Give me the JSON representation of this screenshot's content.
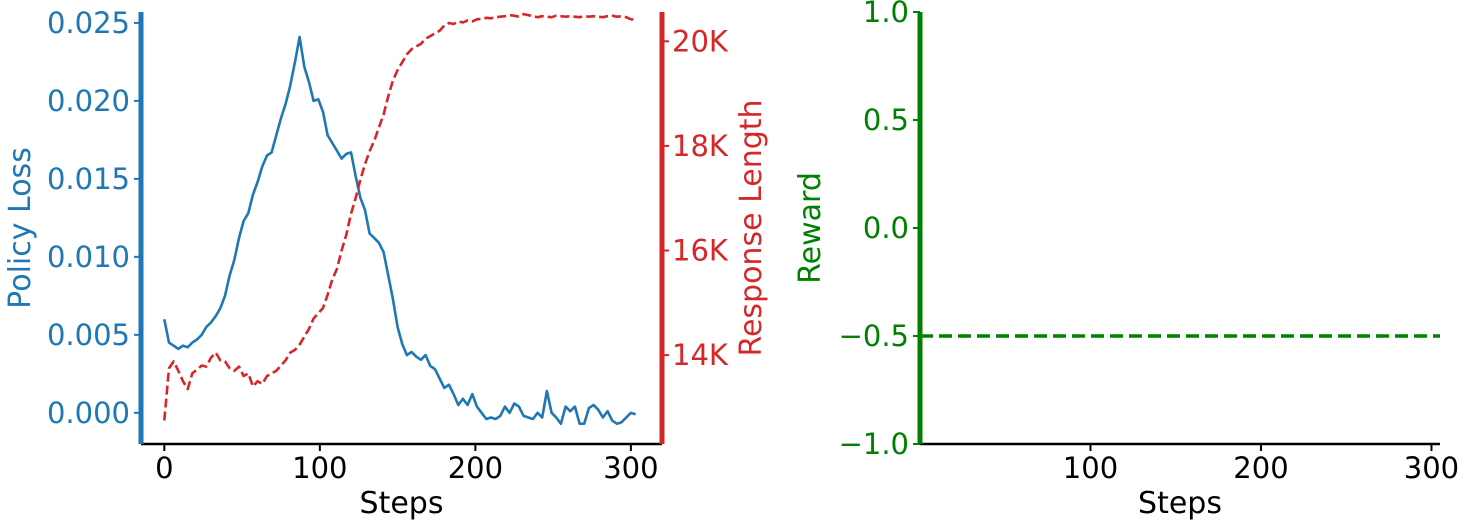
{
  "chart_data": [
    {
      "type": "line",
      "xlabel": "Steps",
      "xlim": [
        -15,
        320
      ],
      "xticks": [
        0,
        100,
        200,
        300
      ],
      "xtick_labels": [
        "0",
        "100",
        "200",
        "300"
      ],
      "left_axis": {
        "label": "Policy Loss",
        "color": "#1f77b4",
        "ylim": [
          -0.002,
          0.0257
        ],
        "ticks": [
          0.0,
          0.005,
          0.01,
          0.015,
          0.02,
          0.025
        ],
        "tick_labels": [
          "0.000",
          "0.005",
          "0.010",
          "0.015",
          "0.020",
          "0.025"
        ]
      },
      "right_axis": {
        "label": "Response Length",
        "color": "#d62728",
        "ylim": [
          12300,
          20560
        ],
        "ticks": [
          14000,
          16000,
          18000,
          20000
        ],
        "tick_labels": [
          "14K",
          "16K",
          "18K",
          "20K"
        ]
      },
      "grid": false,
      "series": [
        {
          "axis": "left",
          "style": "solid",
          "color": "#1f77b4",
          "x": [
            0,
            3,
            6,
            9,
            12,
            15,
            18,
            21,
            24,
            27,
            30,
            33,
            36,
            39,
            42,
            45,
            48,
            51,
            54,
            57,
            60,
            63,
            66,
            69,
            72,
            75,
            78,
            81,
            84,
            87,
            90,
            93,
            96,
            99,
            102,
            105,
            108,
            111,
            114,
            117,
            120,
            123,
            126,
            129,
            132,
            135,
            138,
            141,
            144,
            147,
            150,
            153,
            156,
            159,
            162,
            165,
            168,
            171,
            174,
            177,
            180,
            183,
            186,
            189,
            192,
            195,
            198,
            201,
            204,
            207,
            210,
            213,
            216,
            219,
            222,
            225,
            228,
            231,
            234,
            237,
            240,
            243,
            246,
            249,
            252,
            255,
            258,
            261,
            264,
            267,
            270,
            273,
            276,
            279,
            282,
            285,
            288,
            291,
            294,
            297,
            300,
            303
          ],
          "y": [
            0.006,
            0.0045,
            0.0043,
            0.0041,
            0.0043,
            0.0042,
            0.0045,
            0.0047,
            0.005,
            0.0055,
            0.0058,
            0.0062,
            0.0067,
            0.0075,
            0.0088,
            0.0098,
            0.0112,
            0.0123,
            0.0128,
            0.014,
            0.0148,
            0.0158,
            0.0165,
            0.0167,
            0.0178,
            0.0189,
            0.0198,
            0.021,
            0.0225,
            0.0241,
            0.0222,
            0.0212,
            0.02,
            0.0201,
            0.0193,
            0.0178,
            0.0173,
            0.0168,
            0.0163,
            0.0166,
            0.0167,
            0.0152,
            0.0138,
            0.013,
            0.0115,
            0.0112,
            0.0109,
            0.0103,
            0.0088,
            0.0073,
            0.0055,
            0.0044,
            0.0037,
            0.0039,
            0.0036,
            0.0034,
            0.0037,
            0.003,
            0.0028,
            0.0022,
            0.0016,
            0.0018,
            0.0012,
            0.0005,
            0.0009,
            0.0005,
            0.0012,
            0.0004,
            0.0,
            -0.0004,
            -0.0003,
            -0.0004,
            -0.0002,
            0.0004,
            0.0,
            0.0006,
            0.0004,
            -0.0002,
            -0.0003,
            -0.0004,
            0.0,
            -0.0003,
            0.0014,
            0.0,
            -0.0003,
            -0.0007,
            0.0004,
            0.0001,
            0.0004,
            -0.0007,
            -0.0007,
            0.0003,
            0.0005,
            0.0002,
            -0.0003,
            0.0001,
            -0.0005,
            -0.0007,
            -0.0006,
            -0.0003,
            0.0,
            -0.0001
          ]
        },
        {
          "axis": "right",
          "style": "dashed",
          "color": "#d62728",
          "x": [
            0,
            3,
            6,
            9,
            12,
            15,
            18,
            21,
            24,
            27,
            30,
            33,
            36,
            39,
            42,
            45,
            48,
            51,
            54,
            57,
            60,
            63,
            66,
            69,
            72,
            75,
            78,
            81,
            84,
            87,
            90,
            93,
            96,
            99,
            102,
            105,
            108,
            111,
            114,
            117,
            120,
            123,
            126,
            129,
            132,
            135,
            138,
            141,
            144,
            147,
            150,
            153,
            156,
            159,
            162,
            165,
            168,
            171,
            174,
            177,
            180,
            183,
            186,
            189,
            192,
            195,
            198,
            201,
            204,
            207,
            210,
            213,
            216,
            219,
            222,
            225,
            228,
            231,
            234,
            237,
            240,
            243,
            246,
            249,
            252,
            255,
            258,
            261,
            264,
            267,
            270,
            273,
            276,
            279,
            282,
            285,
            288,
            291,
            294,
            297,
            300,
            303
          ],
          "y": [
            12750,
            13750,
            13880,
            13700,
            13500,
            13350,
            13650,
            13720,
            13800,
            13780,
            13950,
            14050,
            13900,
            13880,
            13750,
            13700,
            13780,
            13600,
            13650,
            13400,
            13500,
            13450,
            13600,
            13650,
            13700,
            13800,
            13900,
            14050,
            14100,
            14200,
            14350,
            14500,
            14700,
            14800,
            14900,
            15150,
            15450,
            15650,
            16000,
            16300,
            16700,
            17000,
            17350,
            17650,
            17900,
            18100,
            18350,
            18600,
            18950,
            19250,
            19450,
            19600,
            19750,
            19850,
            19900,
            19950,
            20050,
            20100,
            20150,
            20200,
            20300,
            20350,
            20330,
            20380,
            20360,
            20400,
            20380,
            20420,
            20430,
            20450,
            20440,
            20460,
            20470,
            20480,
            20500,
            20490,
            20470,
            20520,
            20500,
            20480,
            20460,
            20480,
            20470,
            20460,
            20490,
            20480,
            20470,
            20480,
            20470,
            20460,
            20480,
            20470,
            20480,
            20470,
            20460,
            20480,
            20490,
            20470,
            20480,
            20460,
            20420,
            20410
          ]
        }
      ]
    },
    {
      "type": "line",
      "xlabel": "Steps",
      "ylabel": "Reward",
      "color": "#008000",
      "xlim": [
        0,
        305
      ],
      "ylim": [
        -1.0,
        1.0
      ],
      "xticks": [
        100,
        200,
        300
      ],
      "xtick_labels": [
        "100",
        "200",
        "300"
      ],
      "yticks": [
        -1.0,
        -0.5,
        0.0,
        0.5,
        1.0
      ],
      "ytick_labels": [
        "−1.0",
        "−0.5",
        "0.0",
        "0.5",
        "1.0"
      ],
      "grid": false,
      "series": [
        {
          "style": "dashed",
          "color": "#008000",
          "x": [
            0,
            305
          ],
          "y": [
            -0.5,
            -0.5
          ]
        }
      ]
    }
  ]
}
